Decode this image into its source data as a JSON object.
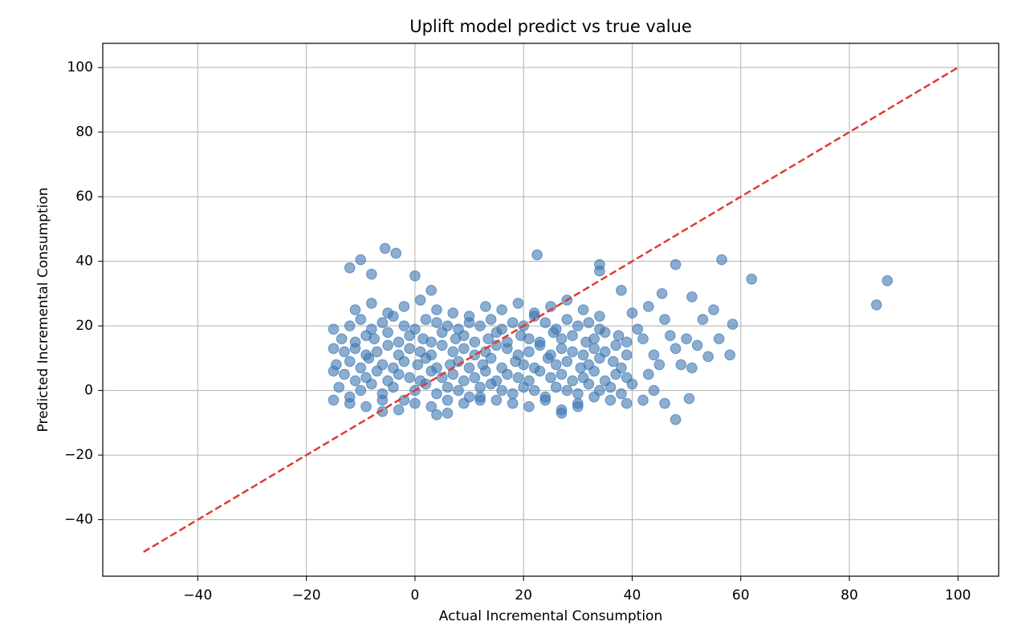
{
  "chart_data": {
    "type": "scatter",
    "title": "Uplift model predict vs true value",
    "xlabel": "Actual Incremental Consumption",
    "ylabel": "Predicted Incremental Consumption",
    "xlim": [
      -57.5,
      107.5
    ],
    "ylim": [
      -57.5,
      107.5
    ],
    "xticks": [
      {
        "value": -40,
        "label": "−40"
      },
      {
        "value": -20,
        "label": "−20"
      },
      0,
      20,
      40,
      60,
      80,
      100
    ],
    "yticks": [
      {
        "value": -40,
        "label": "−40"
      },
      {
        "value": -20,
        "label": "−20"
      },
      0,
      20,
      40,
      60,
      80,
      100
    ],
    "grid": true,
    "reference_line": {
      "x": [
        -50,
        100
      ],
      "y": [
        -50,
        100
      ],
      "color": "#e03c31",
      "style": "dashed"
    },
    "series": [
      {
        "color": "#3c76b1",
        "x": [
          -14,
          -12,
          -10,
          -8,
          -6,
          -4,
          -2,
          0,
          2,
          4,
          6,
          8,
          10,
          12,
          14,
          16,
          18,
          20,
          22,
          24,
          26,
          28,
          30,
          32,
          34,
          36,
          38,
          -13,
          -11,
          -9,
          -7,
          -5,
          -3,
          -1,
          1,
          3,
          5,
          7,
          9,
          11,
          13,
          15,
          17,
          19,
          21,
          23,
          25,
          27,
          29,
          31,
          33,
          35,
          37,
          39,
          -14.5,
          -12,
          -10,
          -8.5,
          -6,
          -4,
          -2,
          0.5,
          2,
          4,
          6.5,
          8,
          10,
          12.5,
          14,
          16,
          18.5,
          20,
          22,
          24.5,
          26,
          28,
          30.5,
          32,
          34,
          36.5,
          38,
          -13,
          -11,
          -9,
          -7,
          -5,
          -3,
          -1,
          1,
          3,
          5,
          7,
          9,
          11,
          13,
          15,
          17,
          19,
          21,
          23,
          25,
          27,
          29,
          31,
          33,
          35,
          37,
          39,
          -13.5,
          -11,
          -9,
          -7.5,
          -5,
          -3,
          -1,
          1.5,
          3,
          5,
          7.5,
          9,
          11,
          13.5,
          15,
          17,
          19.5,
          21,
          23,
          25.5,
          27,
          29,
          31.5,
          33,
          35,
          37.5,
          39,
          -12,
          -10,
          -8,
          -6,
          -4,
          -2,
          0,
          2,
          4,
          6,
          8,
          10,
          12,
          14,
          16,
          18,
          20,
          22,
          24,
          26,
          28,
          30,
          32,
          34,
          -11,
          -8,
          -5,
          -2,
          1,
          4,
          7,
          10,
          13,
          16,
          19,
          22,
          25,
          28,
          31,
          34,
          -12,
          -9,
          -6,
          -3,
          0,
          3,
          6,
          9,
          12,
          15,
          18,
          21,
          24,
          27,
          30,
          33,
          36,
          -12,
          -10,
          -5.5,
          -3.5,
          -8,
          0,
          3,
          22.5,
          34,
          34,
          56.5,
          48,
          62,
          85,
          87,
          58.5,
          48,
          38,
          45.5,
          51,
          55,
          50,
          52,
          54,
          58,
          50.5,
          46,
          42,
          44,
          48,
          42,
          40,
          43,
          46,
          49,
          51,
          44,
          39,
          53,
          56,
          47,
          45,
          41,
          40,
          43,
          6,
          4,
          27,
          -15,
          -15,
          -15,
          -15,
          -6,
          30,
          12
        ],
        "y": [
          1,
          -2,
          0,
          2,
          -1,
          1,
          -3,
          0,
          2,
          -1,
          1,
          0,
          -2,
          1,
          2,
          0,
          -1,
          1,
          0,
          -2,
          1,
          0,
          -1,
          2,
          0,
          1,
          -1,
          5,
          3,
          4,
          6,
          3,
          5,
          4,
          3,
          6,
          4,
          5,
          3,
          4,
          6,
          3,
          5,
          4,
          3,
          6,
          4,
          5,
          3,
          4,
          6,
          3,
          5,
          4,
          8,
          9,
          7,
          10,
          8,
          7,
          9,
          8,
          10,
          7,
          8,
          9,
          7,
          8,
          10,
          7,
          9,
          8,
          7,
          10,
          8,
          9,
          7,
          8,
          10,
          9,
          7,
          12,
          13,
          11,
          12,
          14,
          11,
          13,
          12,
          11,
          14,
          12,
          13,
          11,
          12,
          14,
          13,
          11,
          12,
          14,
          11,
          13,
          12,
          11,
          13,
          12,
          14,
          11,
          16,
          15,
          17,
          16,
          18,
          15,
          17,
          16,
          15,
          18,
          16,
          17,
          15,
          16,
          18,
          15,
          17,
          16,
          15,
          18,
          16,
          17,
          15,
          16,
          18,
          17,
          15,
          20,
          22,
          19,
          21,
          23,
          20,
          19,
          22,
          21,
          20,
          19,
          21,
          20,
          22,
          19,
          21,
          20,
          23,
          21,
          19,
          22,
          20,
          21,
          19,
          25,
          27,
          24,
          26,
          28,
          25,
          24,
          23,
          26,
          25,
          27,
          24,
          26,
          28,
          25,
          23,
          -4,
          -5,
          -3,
          -6,
          -4,
          -5,
          -3,
          -4,
          -2,
          -3,
          -4,
          -5,
          -3,
          -6,
          -4,
          -2,
          -3,
          38,
          40.5,
          44,
          42.5,
          36,
          35.5,
          31,
          42,
          39,
          37,
          40.5,
          39,
          34.5,
          26.5,
          34,
          20.5,
          -9,
          31,
          30,
          29,
          25,
          16,
          14,
          10.5,
          11,
          -2.5,
          -4,
          -3,
          0,
          13,
          16,
          24,
          26,
          22,
          8,
          7,
          11,
          -4,
          22,
          16,
          17,
          8,
          19,
          2,
          5,
          -7,
          -7.5,
          -7,
          -3,
          6,
          13,
          19,
          -6.5,
          -5,
          -3
        ]
      }
    ]
  }
}
